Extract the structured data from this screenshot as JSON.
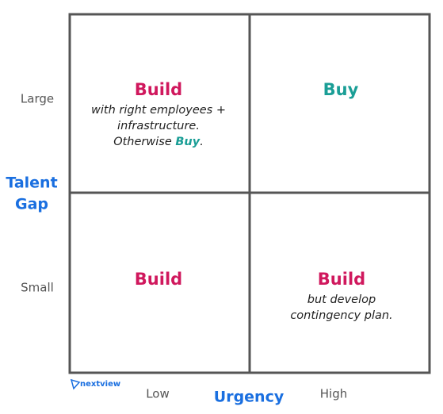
{
  "y_axis": {
    "title": [
      "Talent",
      "Gap"
    ],
    "labels": [
      "Large",
      "Small"
    ]
  },
  "x_axis": {
    "title": "Urgency",
    "labels": [
      "Low",
      "High"
    ]
  },
  "cells": [
    {
      "headline": "Build",
      "note": [
        [
          "with right employees +"
        ],
        [
          "infrastructure."
        ],
        [
          "Otherwise ",
          "Buy",
          "."
        ]
      ]
    },
    {
      "headline": "Buy",
      "note": []
    },
    {
      "headline": "Build",
      "note": []
    },
    {
      "headline": "Build",
      "note": [
        [
          "but develop"
        ],
        [
          "contingency plan."
        ]
      ]
    }
  ],
  "logo": "nextview"
}
